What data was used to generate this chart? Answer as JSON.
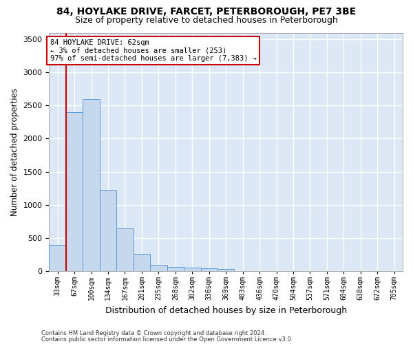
{
  "title1": "84, HOYLAKE DRIVE, FARCET, PETERBOROUGH, PE7 3BE",
  "title2": "Size of property relative to detached houses in Peterborough",
  "xlabel": "Distribution of detached houses by size in Peterborough",
  "ylabel": "Number of detached properties",
  "footnote1": "Contains HM Land Registry data © Crown copyright and database right 2024.",
  "footnote2": "Contains public sector information licensed under the Open Government Licence v3.0.",
  "bar_labels": [
    "33sqm",
    "67sqm",
    "100sqm",
    "134sqm",
    "167sqm",
    "201sqm",
    "235sqm",
    "268sqm",
    "302sqm",
    "336sqm",
    "369sqm",
    "403sqm",
    "436sqm",
    "470sqm",
    "504sqm",
    "537sqm",
    "571sqm",
    "604sqm",
    "638sqm",
    "672sqm",
    "705sqm"
  ],
  "bar_values": [
    390,
    2400,
    2600,
    1230,
    640,
    255,
    95,
    60,
    55,
    45,
    30,
    0,
    0,
    0,
    0,
    0,
    0,
    0,
    0,
    0,
    0
  ],
  "bar_color": "#c5d8ee",
  "bar_edge_color": "#5b9bd5",
  "red_line_color": "#cc0000",
  "annotation_line1": "84 HOYLAKE DRIVE: 62sqm",
  "annotation_line2": "← 3% of detached houses are smaller (253)",
  "annotation_line3": "97% of semi-detached houses are larger (7,383) →",
  "ylim_max": 3600,
  "yticks": [
    0,
    500,
    1000,
    1500,
    2000,
    2500,
    3000,
    3500
  ],
  "bg_color": "#dce8f5",
  "grid_color": "#ffffff",
  "fig_bg_color": "#ffffff",
  "title1_fontsize": 10,
  "title2_fontsize": 9
}
